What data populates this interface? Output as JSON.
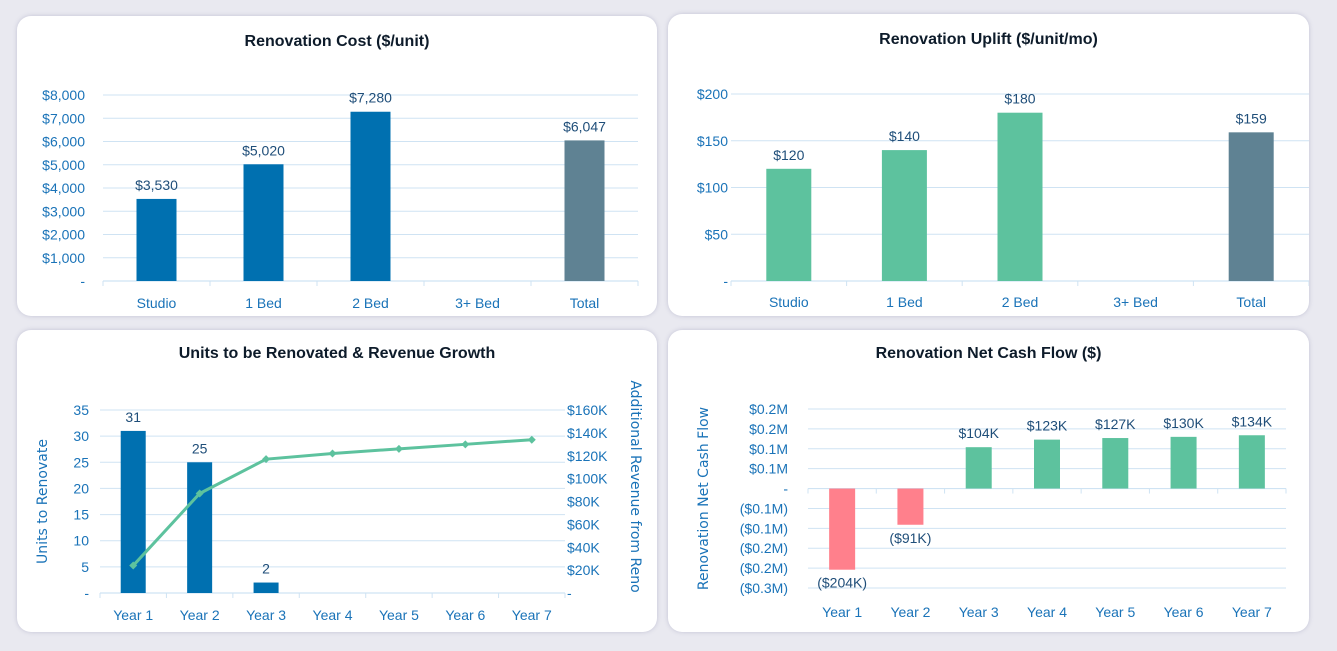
{
  "colors": {
    "blue": "#0070b0",
    "green": "#5dc29e",
    "gray": "#5f8293",
    "red": "#ff808c",
    "grid": "#cfe3f3",
    "tick": "#1a73b8",
    "label": "#1f4e79"
  },
  "chart_data": [
    {
      "id": "cost",
      "type": "bar",
      "title": "Renovation Cost ($/unit)",
      "categories": [
        "Studio",
        "1 Bed",
        "2 Bed",
        "3+ Bed",
        "Total"
      ],
      "values": [
        3530,
        5020,
        7280,
        null,
        6047
      ],
      "data_labels": [
        "$3,530",
        "$5,020",
        "$7,280",
        "",
        "$6,047"
      ],
      "highlight_last": true,
      "ylim": [
        0,
        8000
      ],
      "yticks": [
        0,
        1000,
        2000,
        3000,
        4000,
        5000,
        6000,
        7000,
        8000
      ],
      "ytick_labels": [
        "-",
        "$1,000",
        "$2,000",
        "$3,000",
        "$4,000",
        "$5,000",
        "$6,000",
        "$7,000",
        "$8,000"
      ],
      "xlabel": "",
      "ylabel": "",
      "grid": true
    },
    {
      "id": "uplift",
      "type": "bar",
      "title": "Renovation Uplift ($/unit/mo)",
      "categories": [
        "Studio",
        "1 Bed",
        "2 Bed",
        "3+ Bed",
        "Total"
      ],
      "values": [
        120,
        140,
        180,
        null,
        159
      ],
      "data_labels": [
        "$120",
        "$140",
        "$180",
        "",
        "$159"
      ],
      "highlight_last": true,
      "ylim": [
        0,
        200
      ],
      "yticks": [
        0,
        50,
        100,
        150,
        200
      ],
      "ytick_labels": [
        "-",
        "$50",
        "$100",
        "$150",
        "$200"
      ],
      "xlabel": "",
      "ylabel": "",
      "grid": true
    },
    {
      "id": "units",
      "type": "bar+line",
      "title": "Units to be Renovated & Revenue Growth",
      "categories": [
        "Year 1",
        "Year 2",
        "Year 3",
        "Year 4",
        "Year 5",
        "Year 6",
        "Year 7"
      ],
      "series": [
        {
          "name": "Units to Renovate",
          "type": "bar",
          "axis": "left",
          "values": [
            31,
            25,
            2,
            0,
            0,
            0,
            0
          ],
          "data_labels": [
            "31",
            "25",
            "2",
            "",
            "",
            "",
            ""
          ]
        },
        {
          "name": "Additional Revenue from Reno",
          "type": "line",
          "axis": "right",
          "values": [
            24000,
            87000,
            117000,
            122000,
            126000,
            130000,
            134000
          ]
        }
      ],
      "ylim": [
        0,
        35
      ],
      "yticks": [
        0,
        5,
        10,
        15,
        20,
        25,
        30,
        35
      ],
      "ytick_labels": [
        "-",
        "5",
        "10",
        "15",
        "20",
        "25",
        "30",
        "35"
      ],
      "y2lim": [
        0,
        160000
      ],
      "y2ticks": [
        0,
        20000,
        40000,
        60000,
        80000,
        100000,
        120000,
        140000,
        160000
      ],
      "y2tick_labels": [
        "-",
        "$20K",
        "$40K",
        "$60K",
        "$80K",
        "$100K",
        "$120K",
        "$140K",
        "$160K"
      ],
      "ylabel": "Units to Renovate",
      "y2label": "Additional Revenue from Reno",
      "grid": true
    },
    {
      "id": "ncf",
      "type": "bar",
      "title": "Renovation Net Cash Flow ($)",
      "categories": [
        "Year 1",
        "Year 2",
        "Year 3",
        "Year 4",
        "Year 5",
        "Year 6",
        "Year 7"
      ],
      "values": [
        -204000,
        -91000,
        104000,
        123000,
        127000,
        130000,
        134000
      ],
      "data_labels": [
        "($204K)",
        "($91K)",
        "$104K",
        "$123K",
        "$127K",
        "$130K",
        "$134K"
      ],
      "ylim": [
        -250000,
        200000
      ],
      "yticks": [
        -250000,
        -200000,
        -150000,
        -100000,
        -50000,
        0,
        50000,
        100000,
        150000,
        200000
      ],
      "ytick_labels": [
        "($0.3M)",
        "($0.2M)",
        "($0.2M)",
        "($0.1M)",
        "($0.1M)",
        "-",
        "$0.1M",
        "$0.1M",
        "$0.2M",
        "$0.2M"
      ],
      "ylabel": "Renovation Net Cash Flow",
      "grid": true
    }
  ]
}
